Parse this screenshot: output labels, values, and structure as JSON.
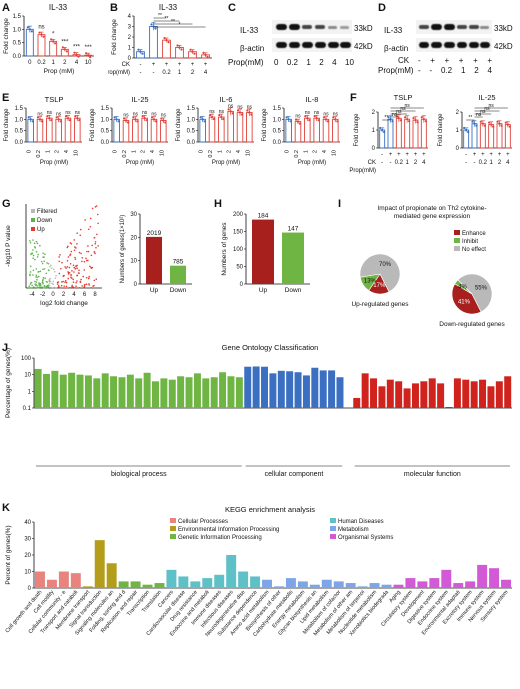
{
  "panels": {
    "A": {
      "letter": "A",
      "title": "IL-33",
      "ylabel": "Fold change",
      "xlabel": "Prop (mM)",
      "ticks_x": [
        "0",
        "0.2",
        "1",
        "2",
        "4",
        "10"
      ],
      "values": [
        1.0,
        0.8,
        0.55,
        0.25,
        0.05,
        0.03
      ],
      "sig": [
        "",
        "ns",
        "*",
        "***",
        "***",
        "***"
      ],
      "ylim": [
        0,
        1.5
      ],
      "yticks": [
        "0.0",
        "0.5",
        "1.0",
        "1.5"
      ]
    },
    "B": {
      "letter": "B",
      "title": "IL-33",
      "ylabel": "Fold change",
      "xlabel_ck": "CK",
      "xlabel_prop": "Prop(mM)",
      "ck_row": [
        "-",
        "+",
        "+",
        "+",
        "+",
        "+"
      ],
      "prop_row": [
        "-",
        "-",
        "0.2",
        "1",
        "2",
        "4"
      ],
      "values": [
        0.6,
        3.0,
        1.7,
        1.0,
        0.6,
        0.3
      ],
      "sig": [
        "**",
        "**",
        "**",
        "*"
      ],
      "ylim": [
        0,
        4
      ],
      "yticks": [
        "0",
        "1",
        "2",
        "3",
        "4"
      ]
    },
    "C": {
      "letter": "C",
      "rows": [
        "IL-33",
        "β-actin"
      ],
      "mw": [
        "33kD",
        "42kD"
      ],
      "xlabel": "Prop(mM)",
      "ticks": [
        "0",
        "0.2",
        "1",
        "2",
        "4",
        "10"
      ]
    },
    "D": {
      "letter": "D",
      "rows": [
        "IL-33",
        "β-actin"
      ],
      "mw": [
        "33kD",
        "42kD"
      ],
      "ck_label": "CK",
      "prop_label": "Prop(mM)",
      "ck_row": [
        "-",
        "+",
        "+",
        "+",
        "+",
        "+"
      ],
      "prop_row": [
        "-",
        "-",
        "0.2",
        "1",
        "2",
        "4"
      ]
    },
    "E": {
      "letter": "E",
      "charts": [
        {
          "title": "TSLP",
          "values": [
            1.0,
            1.0,
            1.05,
            1.0,
            1.05,
            1.05
          ]
        },
        {
          "title": "IL-25",
          "values": [
            1.0,
            0.95,
            1.0,
            1.05,
            1.0,
            0.95
          ]
        },
        {
          "title": "IL-6",
          "values": [
            1.0,
            1.1,
            1.1,
            1.35,
            1.3,
            1.3
          ]
        },
        {
          "title": "IL-8",
          "values": [
            1.0,
            0.9,
            1.05,
            1.05,
            1.0,
            1.0
          ]
        }
      ],
      "ylabel": "Fold change",
      "xlabel": "Prop (mM)",
      "ticks": [
        "0",
        "0.2",
        "1",
        "2",
        "4",
        "10"
      ],
      "sig": "ns",
      "yticks": [
        "0.0",
        "0.5",
        "1.0",
        "1.5"
      ]
    },
    "F": {
      "letter": "F",
      "charts": [
        {
          "title": "TSLP",
          "values": [
            1.0,
            1.6,
            1.65,
            1.6,
            1.55,
            1.6
          ]
        },
        {
          "title": "IL-25",
          "values": [
            1.0,
            1.35,
            1.35,
            1.3,
            1.35,
            1.3
          ]
        }
      ],
      "ylabel": "Fold change",
      "ck_label": "CK",
      "prop_label": "Prop(mM)",
      "ck_row": [
        "-",
        "+",
        "+",
        "+",
        "+",
        "+"
      ],
      "prop_row": [
        "-",
        "-",
        "0.2",
        "1",
        "2",
        "4"
      ],
      "sig": [
        "**",
        "ns",
        "ns",
        "ns",
        "ns"
      ]
    },
    "G": {
      "letter": "G",
      "legend": [
        "Filtered",
        "Down",
        "Up"
      ],
      "xlabel": "log2 fold change",
      "ylabel": "-log10 P value",
      "xticks": [
        "-4",
        "-2",
        "0",
        "2",
        "4",
        "6",
        "8"
      ],
      "bar_ylabel": "Numbers of genes(1×10²)",
      "bar_labels": [
        "Up",
        "Down"
      ],
      "bar_values": [
        2019,
        785
      ],
      "bar_display": [
        "2019",
        "785"
      ],
      "bar_yticks": [
        "0",
        "10",
        "20",
        "30"
      ]
    },
    "H": {
      "letter": "H",
      "ylabel": "Numbers of genes",
      "bar_labels": [
        "Up",
        "Down"
      ],
      "bar_values": [
        184,
        147
      ],
      "bar_yticks": [
        "0",
        "50",
        "100",
        "150",
        "200"
      ]
    },
    "I": {
      "letter": "I",
      "title": "Impact of propionate on Th2 cytokine-mediated gene expression",
      "legend": [
        "Enhance",
        "Inhibit",
        "No effect"
      ],
      "pies": [
        {
          "caption": "Up-regulated genes",
          "slices": [
            17,
            13,
            70
          ],
          "labels": [
            "17%",
            "13%",
            "70%"
          ]
        },
        {
          "caption": "Down-regulated genes",
          "slices": [
            41,
            4,
            55
          ],
          "labels": [
            "41%",
            "4%",
            "55%"
          ]
        }
      ]
    },
    "J": {
      "letter": "J",
      "title": "Gene Ontology Classification",
      "ylabel": "Percentage of genes(%)",
      "groups": [
        "biological process",
        "cellular component",
        "molecular function"
      ],
      "yticks": [
        "0.1",
        "1",
        "10",
        "100"
      ]
    },
    "K": {
      "letter": "K",
      "title": "KEGG enrichment analysis",
      "ylabel": "Percent of genes(%)",
      "legend": [
        "Cellular Processes",
        "Environmental Information Processing",
        "Genetic Information Processing",
        "Human Diseases",
        "Metabolism",
        "Organismal Systems"
      ],
      "yticks": [
        "0",
        "10",
        "20",
        "30",
        "40"
      ]
    }
  },
  "colors": {
    "red": "#e0423a",
    "blue": "#3a6fc2",
    "green": "#6fb544",
    "darkred": "#a8201d",
    "olive": "#b59d1c",
    "teal": "#5fc1c8",
    "magenta": "#d25ad6",
    "salmon": "#e8837e",
    "ltblue": "#7ea5e8",
    "gray": "#b9b9b9"
  },
  "chart_data": [
    {
      "type": "bar",
      "title": "KEGG enrichment analysis",
      "ylabel": "Percent of genes(%)",
      "ylim": [
        0,
        40
      ],
      "categories": [
        "Cell growth and death",
        "Cell motility",
        "Cellular community - eukaryotes",
        "Transport and catabolism",
        "Membrane transport",
        "Signal transduction",
        "Signaling molecules and interaction",
        "Folding, sorting and degradation",
        "Replication and repair",
        "Transcription",
        "Translation",
        "Cancers",
        "Cardiovascular diseases",
        "Drug resistance",
        "Endocrine and metabolic diseases",
        "Immune diseases",
        "Infectious diseases",
        "Neurodegenerative diseases",
        "Substance dependence",
        "Amino acid metabolism",
        "Biosynthesis of other secondary metabolites",
        "Carbohydrate metabolism",
        "Energy metabolism",
        "Glycan biosynthesis and metabolism",
        "Lipid metabolism",
        "Metabolism of cofactors and vitamins",
        "Metabolism of other amino acids",
        "Metabolism of terpenoids and polyketides",
        "Nucleotide metabolism",
        "Xenobiotics biodegradation and metabolism",
        "Aging",
        "Circulatory system",
        "Development",
        "Digestive system",
        "Endocrine system",
        "Environmental adaptation",
        "Excretory system",
        "Immune system",
        "Nervous system",
        "Sensory system"
      ],
      "values": [
        10,
        5,
        10,
        9,
        1,
        29,
        15,
        4,
        4,
        2,
        3,
        11,
        7,
        4,
        6,
        8,
        20,
        10,
        7,
        5,
        1,
        6,
        4,
        2,
        5,
        4,
        3,
        1,
        3,
        2,
        2,
        6,
        4,
        6,
        11,
        3,
        4,
        14,
        12,
        5
      ]
    }
  ]
}
